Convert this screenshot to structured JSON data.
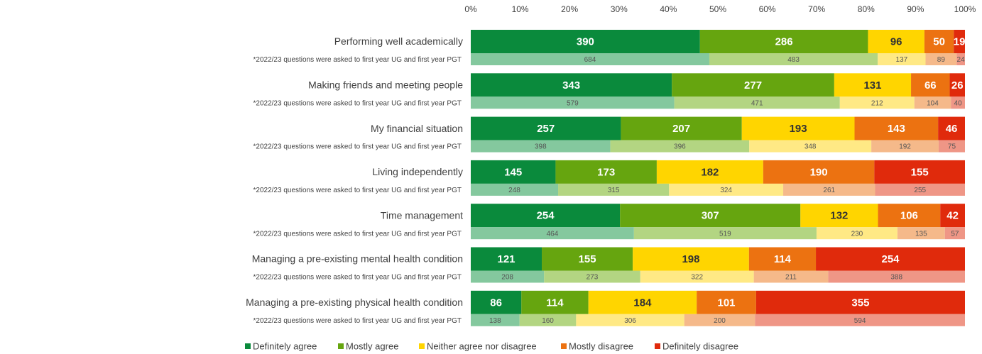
{
  "chart_data": {
    "type": "bar",
    "stacked": "percent",
    "orientation": "horizontal",
    "categories": [
      "Performing well academically",
      "Making friends and meeting people",
      "My financial situation",
      "Living independently",
      "Time management",
      "Managing a pre-existing mental health condition",
      "Managing a pre-existing physical health condition"
    ],
    "comparison_label": "*2022/23 questions were asked to first year UG and first year PGT",
    "xlim": [
      0,
      100
    ],
    "xticks": [
      {
        "value": 0,
        "label": "0%"
      },
      {
        "value": 10,
        "label": "10%"
      },
      {
        "value": 20,
        "label": "20%"
      },
      {
        "value": 30,
        "label": "30%"
      },
      {
        "value": 40,
        "label": "40%"
      },
      {
        "value": 50,
        "label": "50%"
      },
      {
        "value": 60,
        "label": "60%"
      },
      {
        "value": 70,
        "label": "70%"
      },
      {
        "value": 80,
        "label": "80%"
      },
      {
        "value": 90,
        "label": "90%"
      },
      {
        "value": 100,
        "label": "100%"
      }
    ],
    "grid": false,
    "legend": "bottom",
    "series": [
      {
        "name": "Definitely agree",
        "color": "#0a8a3c",
        "text_color": "#ffffff",
        "values": [
          390,
          343,
          257,
          145,
          254,
          121,
          86
        ]
      },
      {
        "name": "Mostly agree",
        "color": "#66a50f",
        "text_color": "#ffffff",
        "values": [
          286,
          277,
          207,
          173,
          307,
          155,
          114
        ]
      },
      {
        "name": "Neither agree nor disagree",
        "color": "#ffd500",
        "text_color": "#333333",
        "values": [
          96,
          131,
          193,
          182,
          132,
          198,
          184
        ]
      },
      {
        "name": "Mostly disagree",
        "color": "#ec7211",
        "text_color": "#ffffff",
        "values": [
          50,
          66,
          143,
          190,
          106,
          114,
          101
        ]
      },
      {
        "name": "Definitely disagree",
        "color": "#e02a0c",
        "text_color": "#ffffff",
        "values": [
          19,
          26,
          46,
          155,
          42,
          254,
          355
        ]
      }
    ],
    "comparison_series": [
      {
        "color": "#84c89e",
        "values": [
          684,
          579,
          398,
          248,
          464,
          208,
          138
        ]
      },
      {
        "color": "#b3d582",
        "values": [
          483,
          471,
          396,
          315,
          519,
          273,
          160
        ]
      },
      {
        "color": "#ffe985",
        "values": [
          137,
          212,
          348,
          324,
          230,
          322,
          306
        ]
      },
      {
        "color": "#f5b98a",
        "values": [
          89,
          104,
          192,
          261,
          135,
          211,
          200
        ]
      },
      {
        "color": "#ef9686",
        "values": [
          24,
          40,
          75,
          255,
          57,
          388,
          594
        ]
      }
    ]
  }
}
